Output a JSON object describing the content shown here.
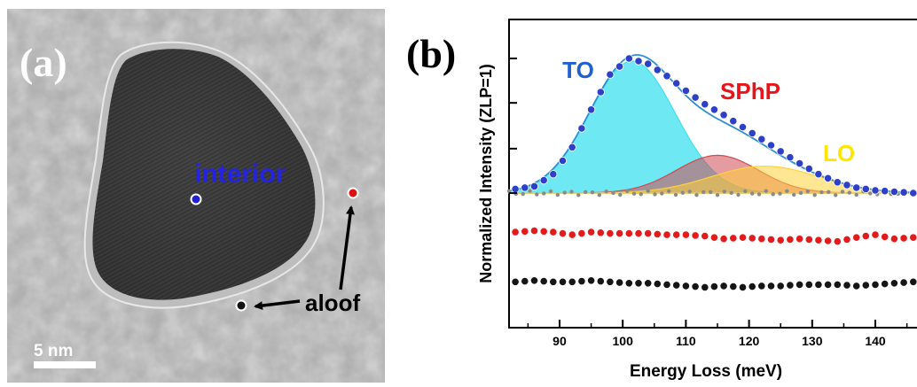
{
  "panel_a": {
    "label": "(a)",
    "annotations": {
      "interior": "interior",
      "aloof": "aloof"
    },
    "scale_bar_label": "5 nm",
    "colors": {
      "interior": "#1f1fd6",
      "aloof_red": "#e01010",
      "aloof_black": "#111111",
      "interior_text": "#2424e0"
    }
  },
  "panel_b": {
    "label": "(b)",
    "peak_labels": {
      "to": "TO",
      "sphp": "SPhP",
      "lo": "LO"
    },
    "colors": {
      "to_label": "#1f5fd0",
      "sphp_label": "#e8141b",
      "lo_label": "#ffe600",
      "to_fill": "#3ee0ee",
      "sphp_fill": "#d04a52",
      "lo_fill": "#ffd23a",
      "interior_points": "#2e3fc8",
      "background_points": "#8a8a8a",
      "red_points": "#e41b1b",
      "black_points": "#151515",
      "fit_line": "#2b8fd6"
    }
  },
  "chart_data": {
    "type": "scatter",
    "xlabel": "Energy Loss (meV)",
    "ylabel": "Normalized Intensity (ZLP=1)",
    "xlim": [
      82,
      148
    ],
    "x_ticks": [
      90,
      100,
      110,
      120,
      130,
      140
    ],
    "x_tick_labels": [
      "90",
      "100",
      "110",
      "120",
      "130",
      "140"
    ],
    "y_tick_labels_visible": false,
    "grid": false,
    "legend": "none",
    "series": [
      {
        "role": "interior",
        "x": [
          83,
          86,
          89,
          92,
          95,
          98,
          101,
          104,
          107,
          110,
          113,
          116,
          119,
          122,
          125,
          128,
          131,
          134,
          137,
          140,
          143,
          146
        ],
        "y": [
          0.03,
          0.05,
          0.14,
          0.34,
          0.62,
          0.88,
          1.0,
          0.96,
          0.87,
          0.76,
          0.66,
          0.58,
          0.49,
          0.4,
          0.31,
          0.22,
          0.14,
          0.08,
          0.04,
          0.02,
          0.01,
          0.0
        ]
      },
      {
        "role": "aloof_red",
        "x": [
          83,
          86,
          89,
          92,
          95,
          98,
          101,
          104,
          107,
          110,
          113,
          116,
          119,
          122,
          125,
          128,
          131,
          134,
          137,
          140,
          143,
          146
        ],
        "y": [
          -0.29,
          -0.28,
          -0.29,
          -0.31,
          -0.29,
          -0.3,
          -0.3,
          -0.3,
          -0.31,
          -0.31,
          -0.32,
          -0.34,
          -0.33,
          -0.34,
          -0.35,
          -0.34,
          -0.35,
          -0.36,
          -0.33,
          -0.31,
          -0.34,
          -0.33
        ]
      },
      {
        "role": "aloof_black",
        "x": [
          83,
          86,
          89,
          92,
          95,
          98,
          101,
          104,
          107,
          110,
          113,
          116,
          119,
          122,
          125,
          128,
          131,
          134,
          137,
          140,
          143,
          146
        ],
        "y": [
          -0.66,
          -0.65,
          -0.66,
          -0.66,
          -0.65,
          -0.66,
          -0.67,
          -0.67,
          -0.68,
          -0.69,
          -0.7,
          -0.69,
          -0.7,
          -0.69,
          -0.69,
          -0.68,
          -0.68,
          -0.68,
          -0.69,
          -0.68,
          -0.67,
          -0.66
        ]
      }
    ],
    "fit_components": [
      {
        "role": "TO",
        "center": 101.5,
        "amplitude": 0.98,
        "width": 6.8
      },
      {
        "role": "SPhP",
        "center": 115,
        "amplitude": 0.28,
        "width": 6.5
      },
      {
        "role": "LO",
        "center": 122.5,
        "amplitude": 0.2,
        "width": 8.5
      }
    ]
  }
}
